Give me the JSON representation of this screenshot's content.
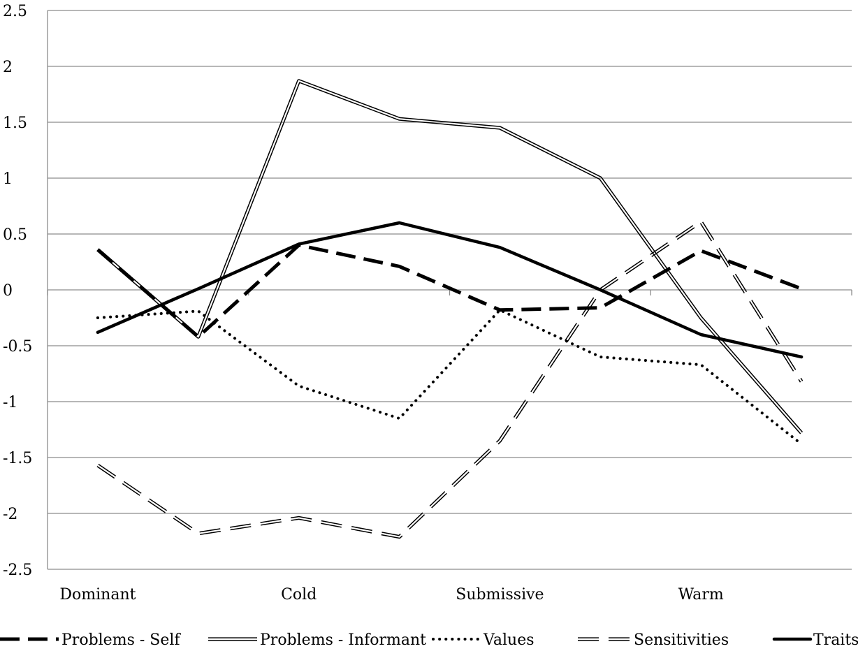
{
  "chart_data": {
    "type": "line",
    "title": "",
    "xlabel": "",
    "ylabel": "",
    "categories": [
      "Dominant",
      "",
      "Cold",
      "",
      "Submissive",
      "",
      "Warm",
      ""
    ],
    "x_tick_labels": [
      "Dominant",
      "Cold",
      "Submissive",
      "Warm"
    ],
    "ylim": [
      -2.5,
      2.5
    ],
    "y_ticks": [
      "2.5",
      "2",
      "1.5",
      "1",
      "0.5",
      "0",
      "-0.5",
      "-1",
      "-1.5",
      "-2",
      "-2.5"
    ],
    "y_tick_values": [
      2.5,
      2,
      1.5,
      1,
      0.5,
      0,
      -0.5,
      -1,
      -1.5,
      -2,
      -2.5
    ],
    "grid": true,
    "legend_position": "bottom",
    "series": [
      {
        "name": "Problems - Self",
        "style": "long-dash-thick",
        "color": "#000000",
        "values": [
          0.36,
          -0.42,
          0.4,
          0.21,
          -0.18,
          -0.16,
          0.35,
          0.01
        ]
      },
      {
        "name": "Problems - Informant",
        "style": "double",
        "color": "#000000",
        "values": [
          0.36,
          -0.42,
          1.87,
          1.53,
          1.45,
          1.0,
          -0.25,
          -1.28
        ]
      },
      {
        "name": "Values",
        "style": "dotted",
        "color": "#000000",
        "values": [
          -0.25,
          -0.19,
          -0.86,
          -1.15,
          -0.18,
          -0.6,
          -0.67,
          -1.38
        ]
      },
      {
        "name": "Sensitivities",
        "style": "double-dashed",
        "color": "#000000",
        "values": [
          -1.57,
          -2.18,
          -2.04,
          -2.21,
          -1.35,
          0.0,
          0.61,
          -0.82
        ]
      },
      {
        "name": "Traits",
        "style": "solid-thick",
        "color": "#000000",
        "values": [
          -0.38,
          0.01,
          0.41,
          0.6,
          0.38,
          0.0,
          -0.4,
          -0.6
        ]
      }
    ]
  }
}
